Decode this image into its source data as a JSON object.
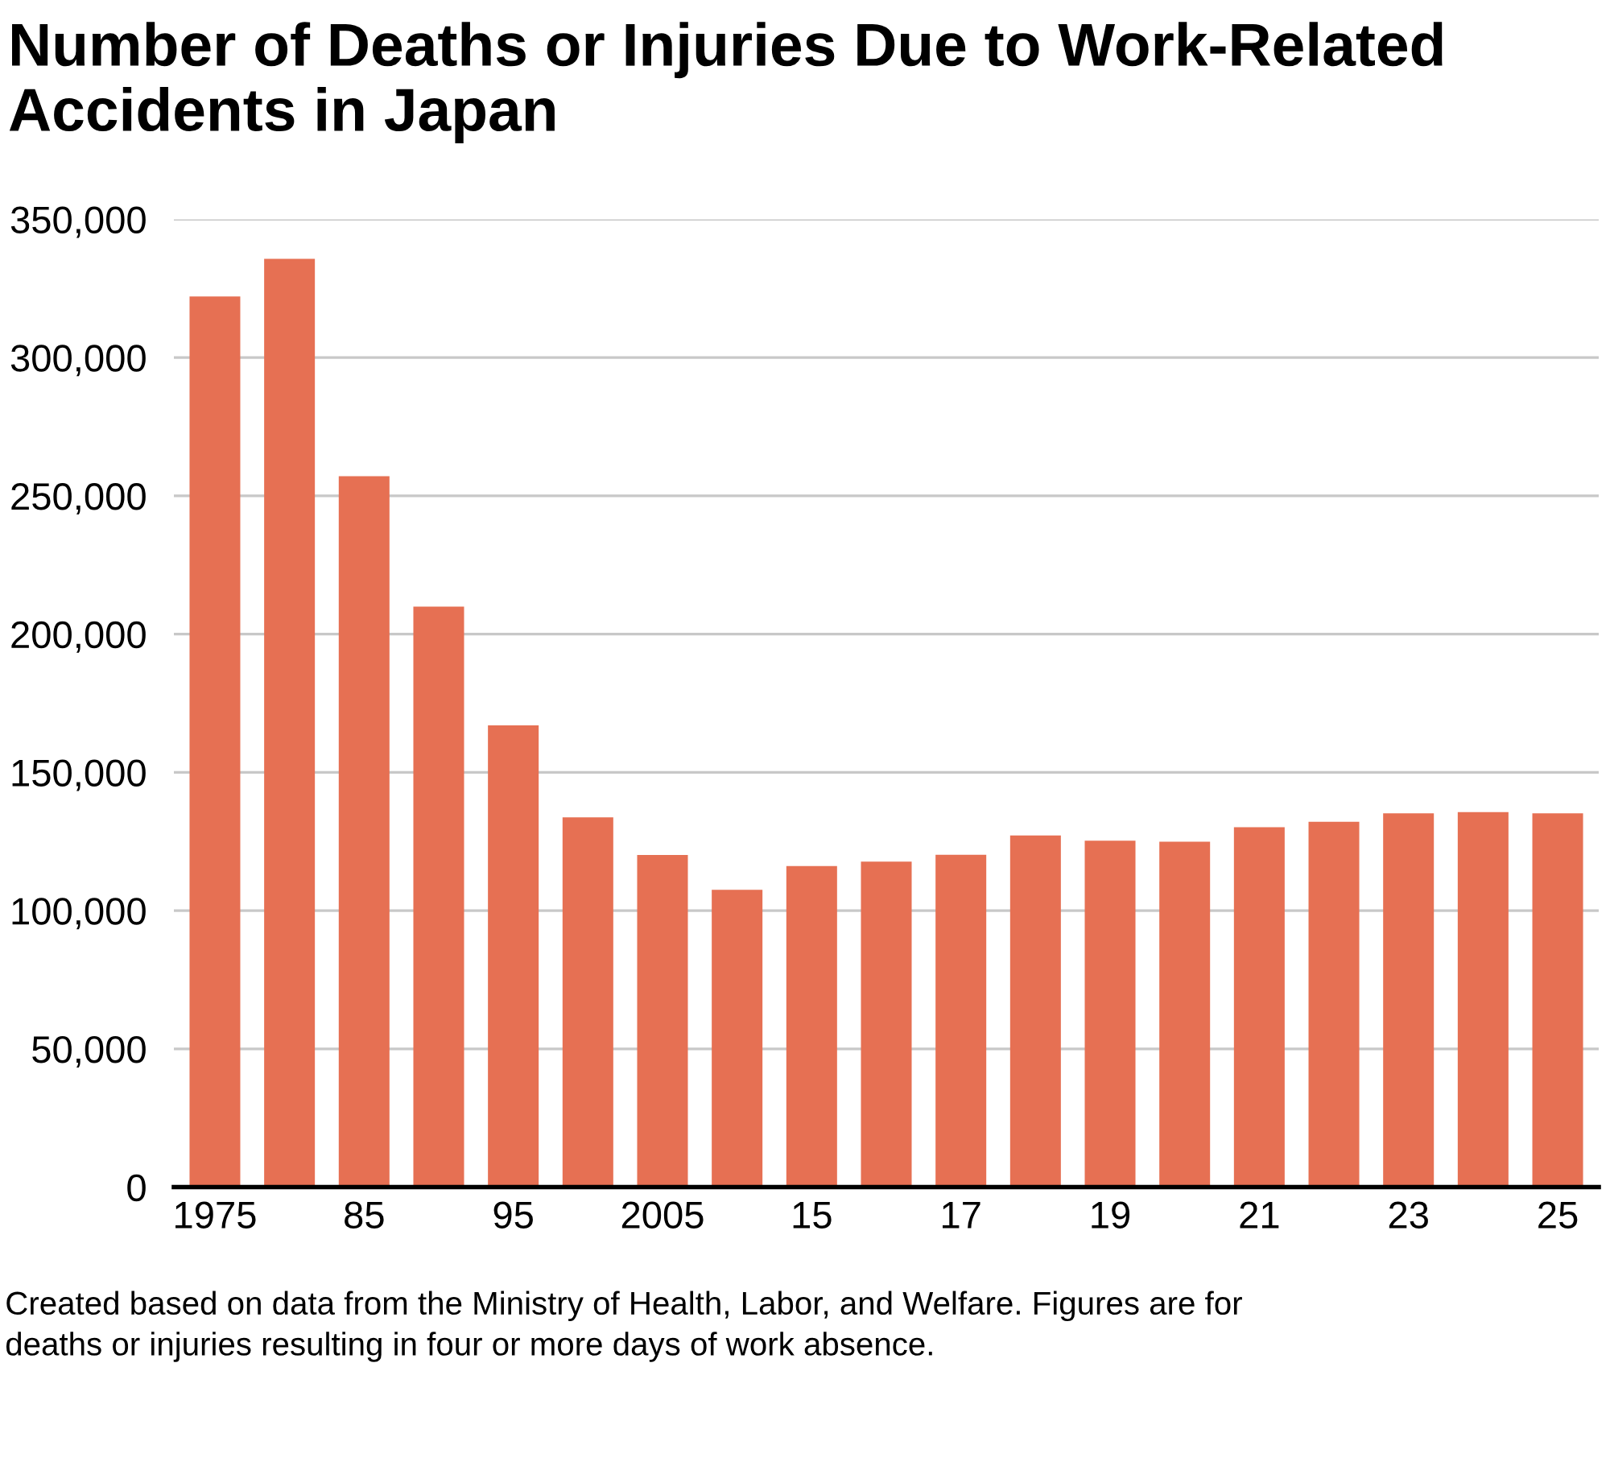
{
  "chart_data": {
    "type": "bar",
    "title": "Number of Deaths or Injuries Due to Work-Related Accidents in Japan",
    "categories": [
      "1975",
      null,
      "85",
      null,
      "95",
      null,
      "2005",
      null,
      "15",
      null,
      "17",
      null,
      "19",
      null,
      "21",
      null,
      "23",
      null,
      "25"
    ],
    "values": [
      322100,
      335700,
      257100,
      209900,
      167000,
      133700,
      120100,
      107500,
      116100,
      117700,
      120200,
      127200,
      125300,
      124900,
      130200,
      132100,
      135200,
      135600,
      135200
    ],
    "color": "#e67053",
    "ylim": [
      0,
      350000
    ],
    "yticks": [
      {
        "value": 0,
        "label": "0"
      },
      {
        "value": 50000,
        "label": "50,000"
      },
      {
        "value": 100000,
        "label": "100,000"
      },
      {
        "value": 150000,
        "label": "150,000"
      },
      {
        "value": 200000,
        "label": "200,000"
      },
      {
        "value": 250000,
        "label": "250,000"
      },
      {
        "value": 300000,
        "label": "300,000"
      },
      {
        "value": 350000,
        "label": "350,000"
      }
    ],
    "grid": "y",
    "annotations": [
      "Created based on data from the Ministry of Health, Labor, and Welfare. Figures are for deaths or injuries resulting in four or more days of work absence."
    ]
  }
}
